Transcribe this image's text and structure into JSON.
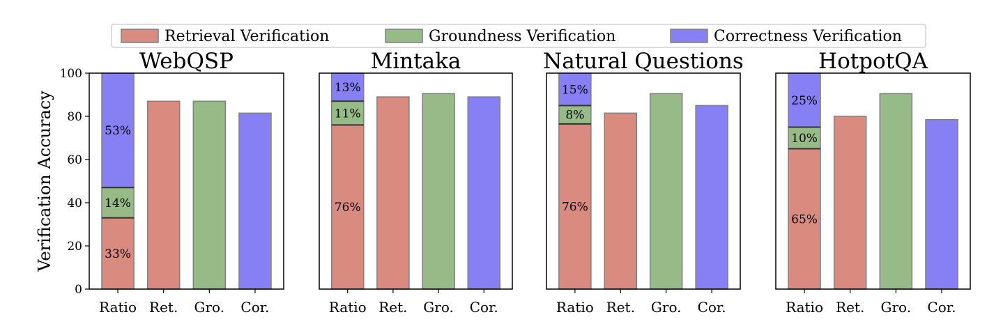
{
  "legend": {
    "items": [
      {
        "label": "Retrieval Verification",
        "color": "#d98b80"
      },
      {
        "label": "Groundness Verification",
        "color": "#97bb87"
      },
      {
        "label": "Correctness Verification",
        "color": "#8780f5"
      }
    ]
  },
  "ylabel": "Verification Accuracy",
  "y_ticks": [
    "0",
    "20",
    "40",
    "60",
    "80",
    "100"
  ],
  "categories": [
    "Ratio",
    "Ret.",
    "Gro.",
    "Cor."
  ],
  "chart_data": [
    {
      "type": "bar",
      "title": "WebQSP",
      "categories": [
        "Ratio",
        "Ret.",
        "Gro.",
        "Cor."
      ],
      "ratio_stack": [
        {
          "series": "Retrieval Verification",
          "value": 33,
          "label": "33%"
        },
        {
          "series": "Groundness Verification",
          "value": 14,
          "label": "14%"
        },
        {
          "series": "Correctness Verification",
          "value": 53,
          "label": "53%"
        }
      ],
      "accuracy": {
        "Ret.": 87,
        "Gro.": 87,
        "Cor.": 81.5
      },
      "ylim": [
        0,
        100
      ],
      "ylabel": "Verification Accuracy"
    },
    {
      "type": "bar",
      "title": "Mintaka",
      "categories": [
        "Ratio",
        "Ret.",
        "Gro.",
        "Cor."
      ],
      "ratio_stack": [
        {
          "series": "Retrieval Verification",
          "value": 76,
          "label": "76%"
        },
        {
          "series": "Groundness Verification",
          "value": 11,
          "label": "11%"
        },
        {
          "series": "Correctness Verification",
          "value": 13,
          "label": "13%"
        }
      ],
      "accuracy": {
        "Ret.": 89,
        "Gro.": 90.5,
        "Cor.": 89
      },
      "ylim": [
        0,
        100
      ]
    },
    {
      "type": "bar",
      "title": "Natural Questions",
      "categories": [
        "Ratio",
        "Ret.",
        "Gro.",
        "Cor."
      ],
      "ratio_stack": [
        {
          "series": "Retrieval Verification",
          "value": 76.5,
          "label": "76%"
        },
        {
          "series": "Groundness Verification",
          "value": 8.5,
          "label": "8%"
        },
        {
          "series": "Correctness Verification",
          "value": 15,
          "label": "15%"
        }
      ],
      "accuracy": {
        "Ret.": 81.5,
        "Gro.": 90.5,
        "Cor.": 85
      },
      "ylim": [
        0,
        100
      ]
    },
    {
      "type": "bar",
      "title": "HotpotQA",
      "categories": [
        "Ratio",
        "Ret.",
        "Gro.",
        "Cor."
      ],
      "ratio_stack": [
        {
          "series": "Retrieval Verification",
          "value": 65,
          "label": "65%"
        },
        {
          "series": "Groundness Verification",
          "value": 10,
          "label": "10%"
        },
        {
          "series": "Correctness Verification",
          "value": 25,
          "label": "25%"
        }
      ],
      "accuracy": {
        "Ret.": 80,
        "Gro.": 90.5,
        "Cor.": 78.5
      },
      "ylim": [
        0,
        100
      ]
    }
  ]
}
